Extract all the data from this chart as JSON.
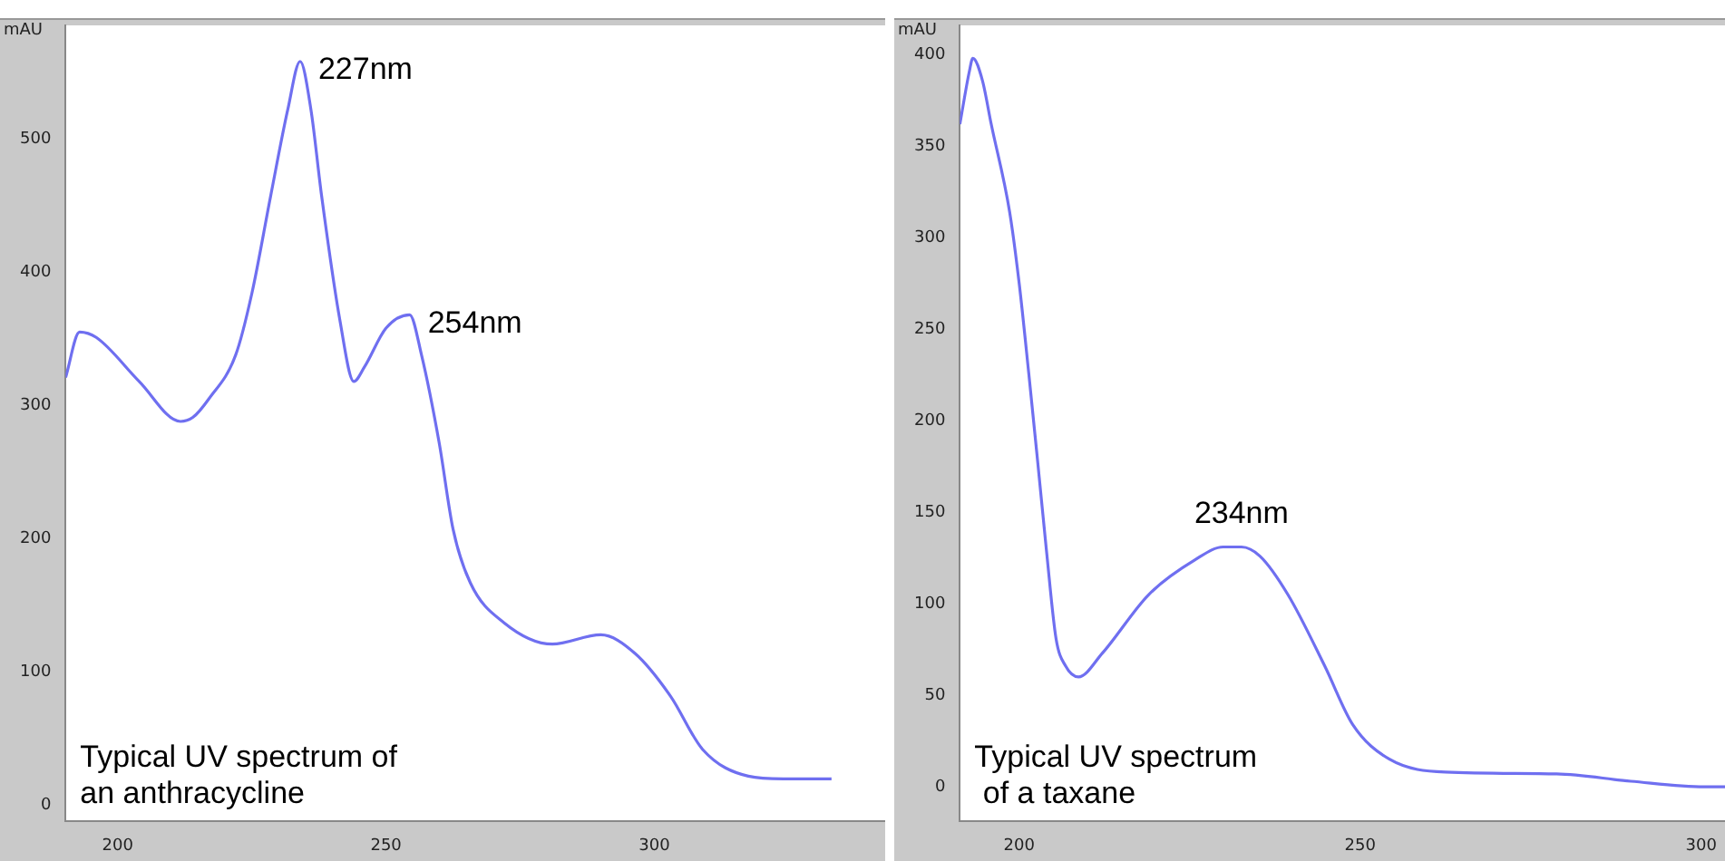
{
  "chart_data": [
    {
      "type": "line",
      "ylabel": "mAU",
      "xlim": [
        190.3,
        343
      ],
      "ylim": [
        -12,
        585
      ],
      "xticks": [
        200,
        250,
        300
      ],
      "yticks": [
        0,
        100,
        200,
        300,
        400,
        500
      ],
      "grid": false,
      "legend": false,
      "marker": "none",
      "annotations": [
        {
          "text": "227nm",
          "x": 234,
          "y": 558
        },
        {
          "text": "254nm",
          "x": 254.4,
          "y": 368
        },
        "Typical UV spectrum of\nan anthracycline"
      ],
      "series": [
        {
          "color": "#6f6ff0",
          "x": [
            190.3,
            192.9,
            196,
            204,
            211.7,
            214,
            217,
            222,
            225,
            228.5,
            231.7,
            234,
            236,
            238,
            241.4,
            244,
            246,
            250,
            254.4,
            256.6,
            259.9,
            262.5,
            265.7,
            272,
            281,
            290,
            296.4,
            303,
            309,
            317.5,
            324,
            333
          ],
          "values": [
            321,
            355,
            351,
            318,
            288,
            291,
            305,
            338,
            384,
            457,
            522,
            558,
            522,
            457,
            364,
            318,
            329,
            358,
            368,
            338,
            272,
            207,
            167,
            137,
            121,
            128,
            114,
            82,
            42,
            22,
            20,
            20
          ]
        }
      ]
    },
    {
      "type": "line",
      "ylabel": "mAU",
      "xlim": [
        191.3,
        303.5
      ],
      "ylim": [
        -19,
        416
      ],
      "xticks": [
        200,
        250,
        300
      ],
      "yticks": [
        0,
        50,
        100,
        150,
        200,
        250,
        300,
        350,
        400
      ],
      "grid": false,
      "legend": false,
      "marker": "none",
      "annotations": [
        {
          "text": "234nm",
          "x": 231,
          "y": 131
        },
        "Typical UV spectrum\n of a taxane"
      ],
      "series": [
        {
          "color": "#6f6ff0",
          "x": [
            191.3,
            192.7,
            193.2,
            194.6,
            195.9,
            198.6,
            200,
            201.4,
            202.7,
            204,
            205.4,
            206.8,
            208.7,
            212.2,
            219,
            225.8,
            229.9,
            232.6,
            235.3,
            239.4,
            244.8,
            248.9,
            254.3,
            262.5,
            278.8,
            289.7,
            300.5,
            303.5
          ],
          "values": [
            362,
            391,
            398,
            386,
            362,
            314,
            275,
            226,
            178,
            129,
            81,
            66,
            60,
            73,
            105,
            124,
            131,
            131,
            126,
            105,
            66,
            34,
            15,
            8,
            7,
            3,
            0,
            0
          ]
        }
      ]
    }
  ]
}
